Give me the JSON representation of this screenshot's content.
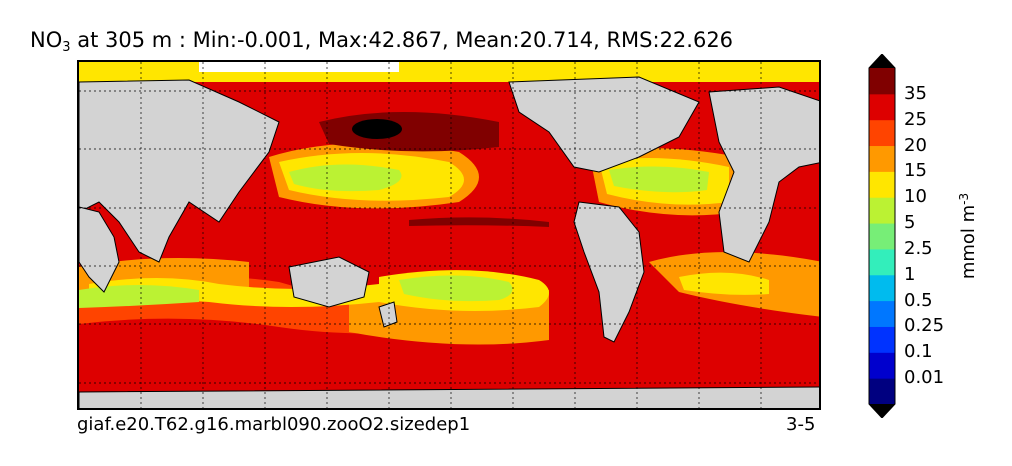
{
  "title": {
    "variable": "NO",
    "subscript": "3",
    "rest": " at 305 m : Min:-0.001, Max:42.867, Mean:20.714, RMS:22.626"
  },
  "map": {
    "land_color": "#d3d3d3",
    "grid": true,
    "grid_style": "dotted"
  },
  "caption_left": "giaf.e20.T62.g16.marbl090.zooO2.sizedep1",
  "caption_right": "3-5",
  "colorbar": {
    "units_main": "mmol m",
    "units_exp": "-3",
    "levels": [
      "0.01",
      "0.1",
      "0.25",
      "0.5",
      "1",
      "2.5",
      "5",
      "10",
      "15",
      "20",
      "25",
      "35"
    ],
    "colors": [
      "#000080",
      "#0000cd",
      "#0033ff",
      "#0077ff",
      "#00bbee",
      "#33eebb",
      "#77ee77",
      "#bbf233",
      "#ffe600",
      "#ff9900",
      "#ff4400",
      "#dd0000",
      "#800000"
    ],
    "extend": "both"
  }
}
